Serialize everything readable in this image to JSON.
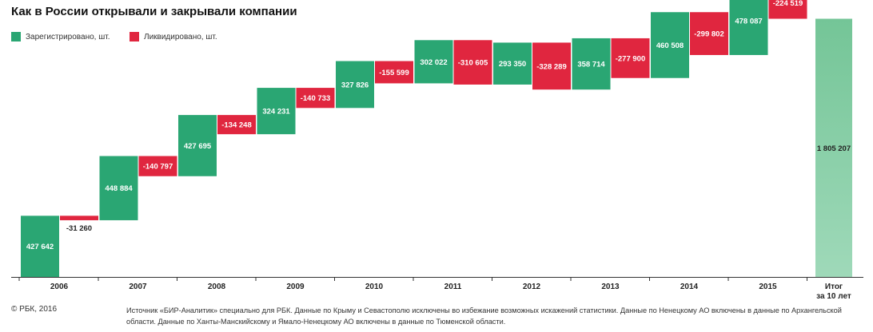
{
  "title": "Как в России открывали и закрывали компании",
  "legend": [
    {
      "label": "Зарегистрировано, шт.",
      "color": "#2aa673"
    },
    {
      "label": "Ликвидировано, шт.",
      "color": "#e0263f"
    }
  ],
  "chart_data": {
    "type": "bar",
    "subtype": "waterfall",
    "categories": [
      "2006",
      "2007",
      "2008",
      "2009",
      "2010",
      "2011",
      "2012",
      "2013",
      "2014",
      "2015"
    ],
    "series": [
      {
        "name": "Зарегистрировано, шт.",
        "color": "#2aa673",
        "values": [
          427642,
          448884,
          427695,
          324231,
          327826,
          302022,
          293350,
          358714,
          460508,
          478087
        ],
        "labels": [
          "427 642",
          "448 884",
          "427 695",
          "324 231",
          "327 826",
          "302 022",
          "293 350",
          "358 714",
          "460 508",
          "478 087"
        ]
      },
      {
        "name": "Ликвидировано, шт.",
        "color": "#e0263f",
        "values": [
          -31260,
          -140797,
          -134248,
          -140733,
          -155599,
          -310605,
          -328289,
          -277900,
          -299802,
          -224519
        ],
        "labels": [
          "-31 260",
          "-140 797",
          "-134 248",
          "-140 733",
          "-155 599",
          "-310 605",
          "-328 289",
          "-277 900",
          "-299 802",
          "-224 519"
        ]
      }
    ],
    "total": {
      "label_line1": "Итог",
      "label_line2": "за 10 лет",
      "value": 1805207,
      "value_label": "1 805 207",
      "color": "#7ec9a0"
    }
  },
  "footer": {
    "copyright": "© РБК, 2016",
    "note": "Источник «БИР-Аналитик» специально для РБК. Данные по Крыму и Севастополю исключены во избежание возможных искажений статистики. Данные по Ненецкому АО включены в данные по Архангельской области. Данные по Ханты-Манскийскому и Ямало-Ненецкому АО включены в данные по Тюменской области."
  }
}
